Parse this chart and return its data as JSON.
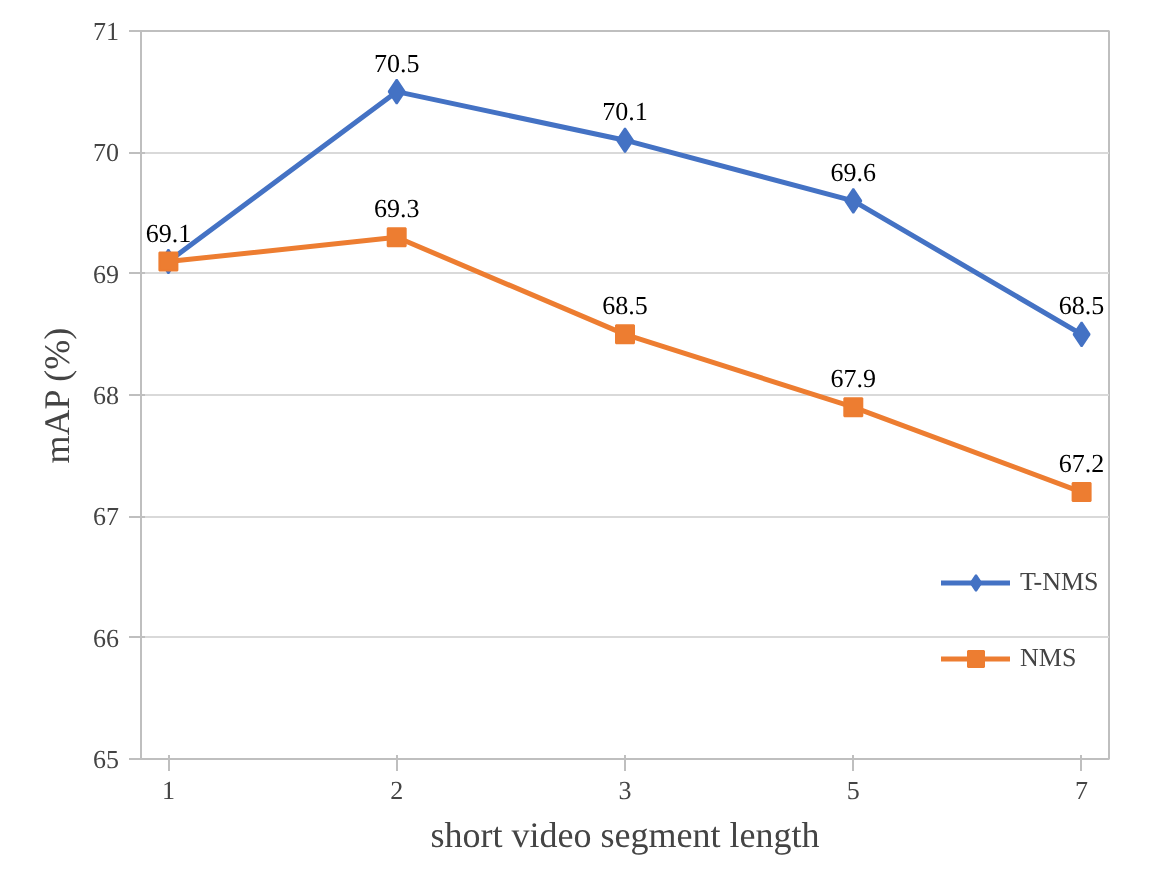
{
  "chart_data": {
    "type": "line",
    "xlabel": "short video segment length",
    "ylabel": "mAP (%)",
    "categories": [
      "1",
      "2",
      "3",
      "5",
      "7"
    ],
    "series": [
      {
        "name": "T-NMS",
        "color": "#4472c4",
        "marker": "diamond",
        "values": [
          69.1,
          70.5,
          70.1,
          69.6,
          68.5
        ],
        "value_labels": [
          "69.1",
          "70.5",
          "70.1",
          "69.6",
          "68.5"
        ]
      },
      {
        "name": "NMS",
        "color": "#ed7d31",
        "marker": "square",
        "values": [
          69.1,
          69.3,
          68.5,
          67.9,
          67.2
        ],
        "value_labels": [
          null,
          "69.3",
          "68.5",
          "67.9",
          "67.2"
        ]
      }
    ],
    "ylim": [
      65,
      71
    ],
    "yticks": [
      65,
      66,
      67,
      68,
      69,
      70,
      71
    ],
    "grid": "y",
    "legend": "right",
    "line_style": "solid"
  }
}
